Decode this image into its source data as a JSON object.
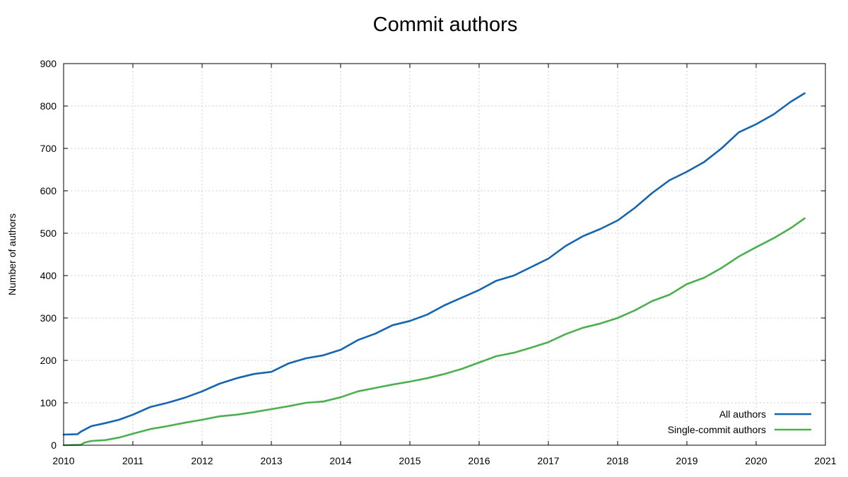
{
  "chart_data": {
    "type": "line",
    "title": "Commit authors",
    "xlabel": "",
    "ylabel": "Number of authors",
    "xlim": [
      2010,
      2021
    ],
    "ylim": [
      0,
      900
    ],
    "x_ticks": [
      2010,
      2011,
      2012,
      2013,
      2014,
      2015,
      2016,
      2017,
      2018,
      2019,
      2020,
      2021
    ],
    "y_ticks": [
      0,
      100,
      200,
      300,
      400,
      500,
      600,
      700,
      800,
      900
    ],
    "grid": true,
    "legend_position": "bottom-right",
    "series": [
      {
        "name": "All authors",
        "color": "#1565b0",
        "x": [
          2010.0,
          2010.2,
          2010.25,
          2010.4,
          2010.6,
          2010.8,
          2011.0,
          2011.25,
          2011.5,
          2011.75,
          2012.0,
          2012.25,
          2012.5,
          2012.75,
          2013.0,
          2013.25,
          2013.5,
          2013.75,
          2014.0,
          2014.25,
          2014.5,
          2014.75,
          2015.0,
          2015.25,
          2015.5,
          2015.75,
          2016.0,
          2016.25,
          2016.5,
          2016.75,
          2017.0,
          2017.25,
          2017.5,
          2017.75,
          2018.0,
          2018.25,
          2018.5,
          2018.75,
          2019.0,
          2019.25,
          2019.5,
          2019.75,
          2020.0,
          2020.25,
          2020.5,
          2020.7
        ],
        "y": [
          25,
          26,
          32,
          45,
          52,
          60,
          72,
          90,
          100,
          112,
          127,
          145,
          158,
          168,
          173,
          193,
          205,
          212,
          225,
          248,
          263,
          283,
          293,
          308,
          330,
          348,
          366,
          388,
          400,
          420,
          440,
          470,
          493,
          510,
          530,
          560,
          595,
          625,
          645,
          668,
          700,
          738,
          757,
          780,
          810,
          830
        ]
      },
      {
        "name": "Single-commit authors",
        "color": "#4caf50",
        "x": [
          2010.0,
          2010.25,
          2010.3,
          2010.4,
          2010.6,
          2010.8,
          2011.0,
          2011.25,
          2011.5,
          2011.75,
          2012.0,
          2012.25,
          2012.5,
          2012.75,
          2013.0,
          2013.25,
          2013.5,
          2013.75,
          2014.0,
          2014.25,
          2014.5,
          2014.75,
          2015.0,
          2015.25,
          2015.5,
          2015.75,
          2016.0,
          2016.25,
          2016.5,
          2016.75,
          2017.0,
          2017.25,
          2017.5,
          2017.75,
          2018.0,
          2018.25,
          2018.5,
          2018.75,
          2019.0,
          2019.25,
          2019.5,
          2019.75,
          2020.0,
          2020.25,
          2020.5,
          2020.7
        ],
        "y": [
          0,
          1,
          6,
          10,
          12,
          18,
          27,
          38,
          45,
          53,
          60,
          68,
          72,
          78,
          85,
          92,
          100,
          103,
          113,
          127,
          135,
          143,
          150,
          158,
          168,
          180,
          195,
          210,
          218,
          230,
          243,
          262,
          277,
          287,
          300,
          318,
          340,
          355,
          380,
          395,
          418,
          445,
          467,
          488,
          512,
          535
        ]
      }
    ]
  }
}
